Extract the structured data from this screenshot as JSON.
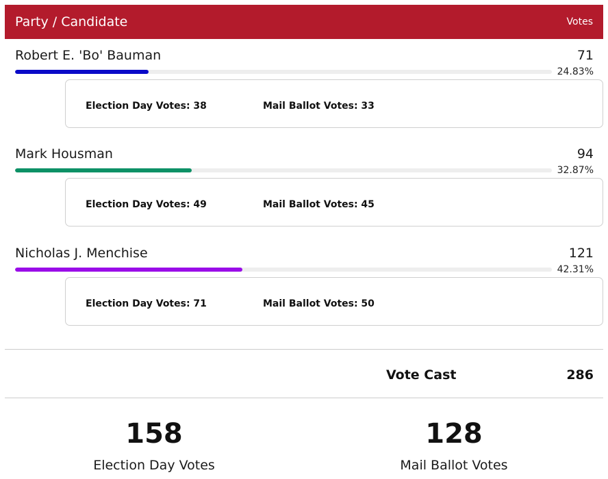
{
  "header": {
    "title": "Party / Candidate",
    "votes_label": "Votes"
  },
  "candidates": [
    {
      "name": "Robert E. 'Bo' Bauman",
      "votes": "71",
      "percent": "24.83%",
      "share": 0.2483,
      "color": "#0a0ac8",
      "election_day": "Election Day Votes: 38",
      "mail_ballot": "Mail Ballot Votes: 33"
    },
    {
      "name": "Mark Housman",
      "votes": "94",
      "percent": "32.87%",
      "share": 0.3287,
      "color": "#0d9166",
      "election_day": "Election Day Votes: 49",
      "mail_ballot": "Mail Ballot Votes: 45"
    },
    {
      "name": "Nicholas J. Menchise",
      "votes": "121",
      "percent": "42.31%",
      "share": 0.4231,
      "color": "#9a0de8",
      "election_day": "Election Day Votes: 71",
      "mail_ballot": "Mail Ballot Votes: 50"
    }
  ],
  "totals": {
    "cast_label": "Vote Cast",
    "cast_value": "286"
  },
  "summary": {
    "election_day_count": "158",
    "election_day_label": "Election Day Votes",
    "mail_ballot_count": "128",
    "mail_ballot_label": "Mail Ballot Votes"
  }
}
